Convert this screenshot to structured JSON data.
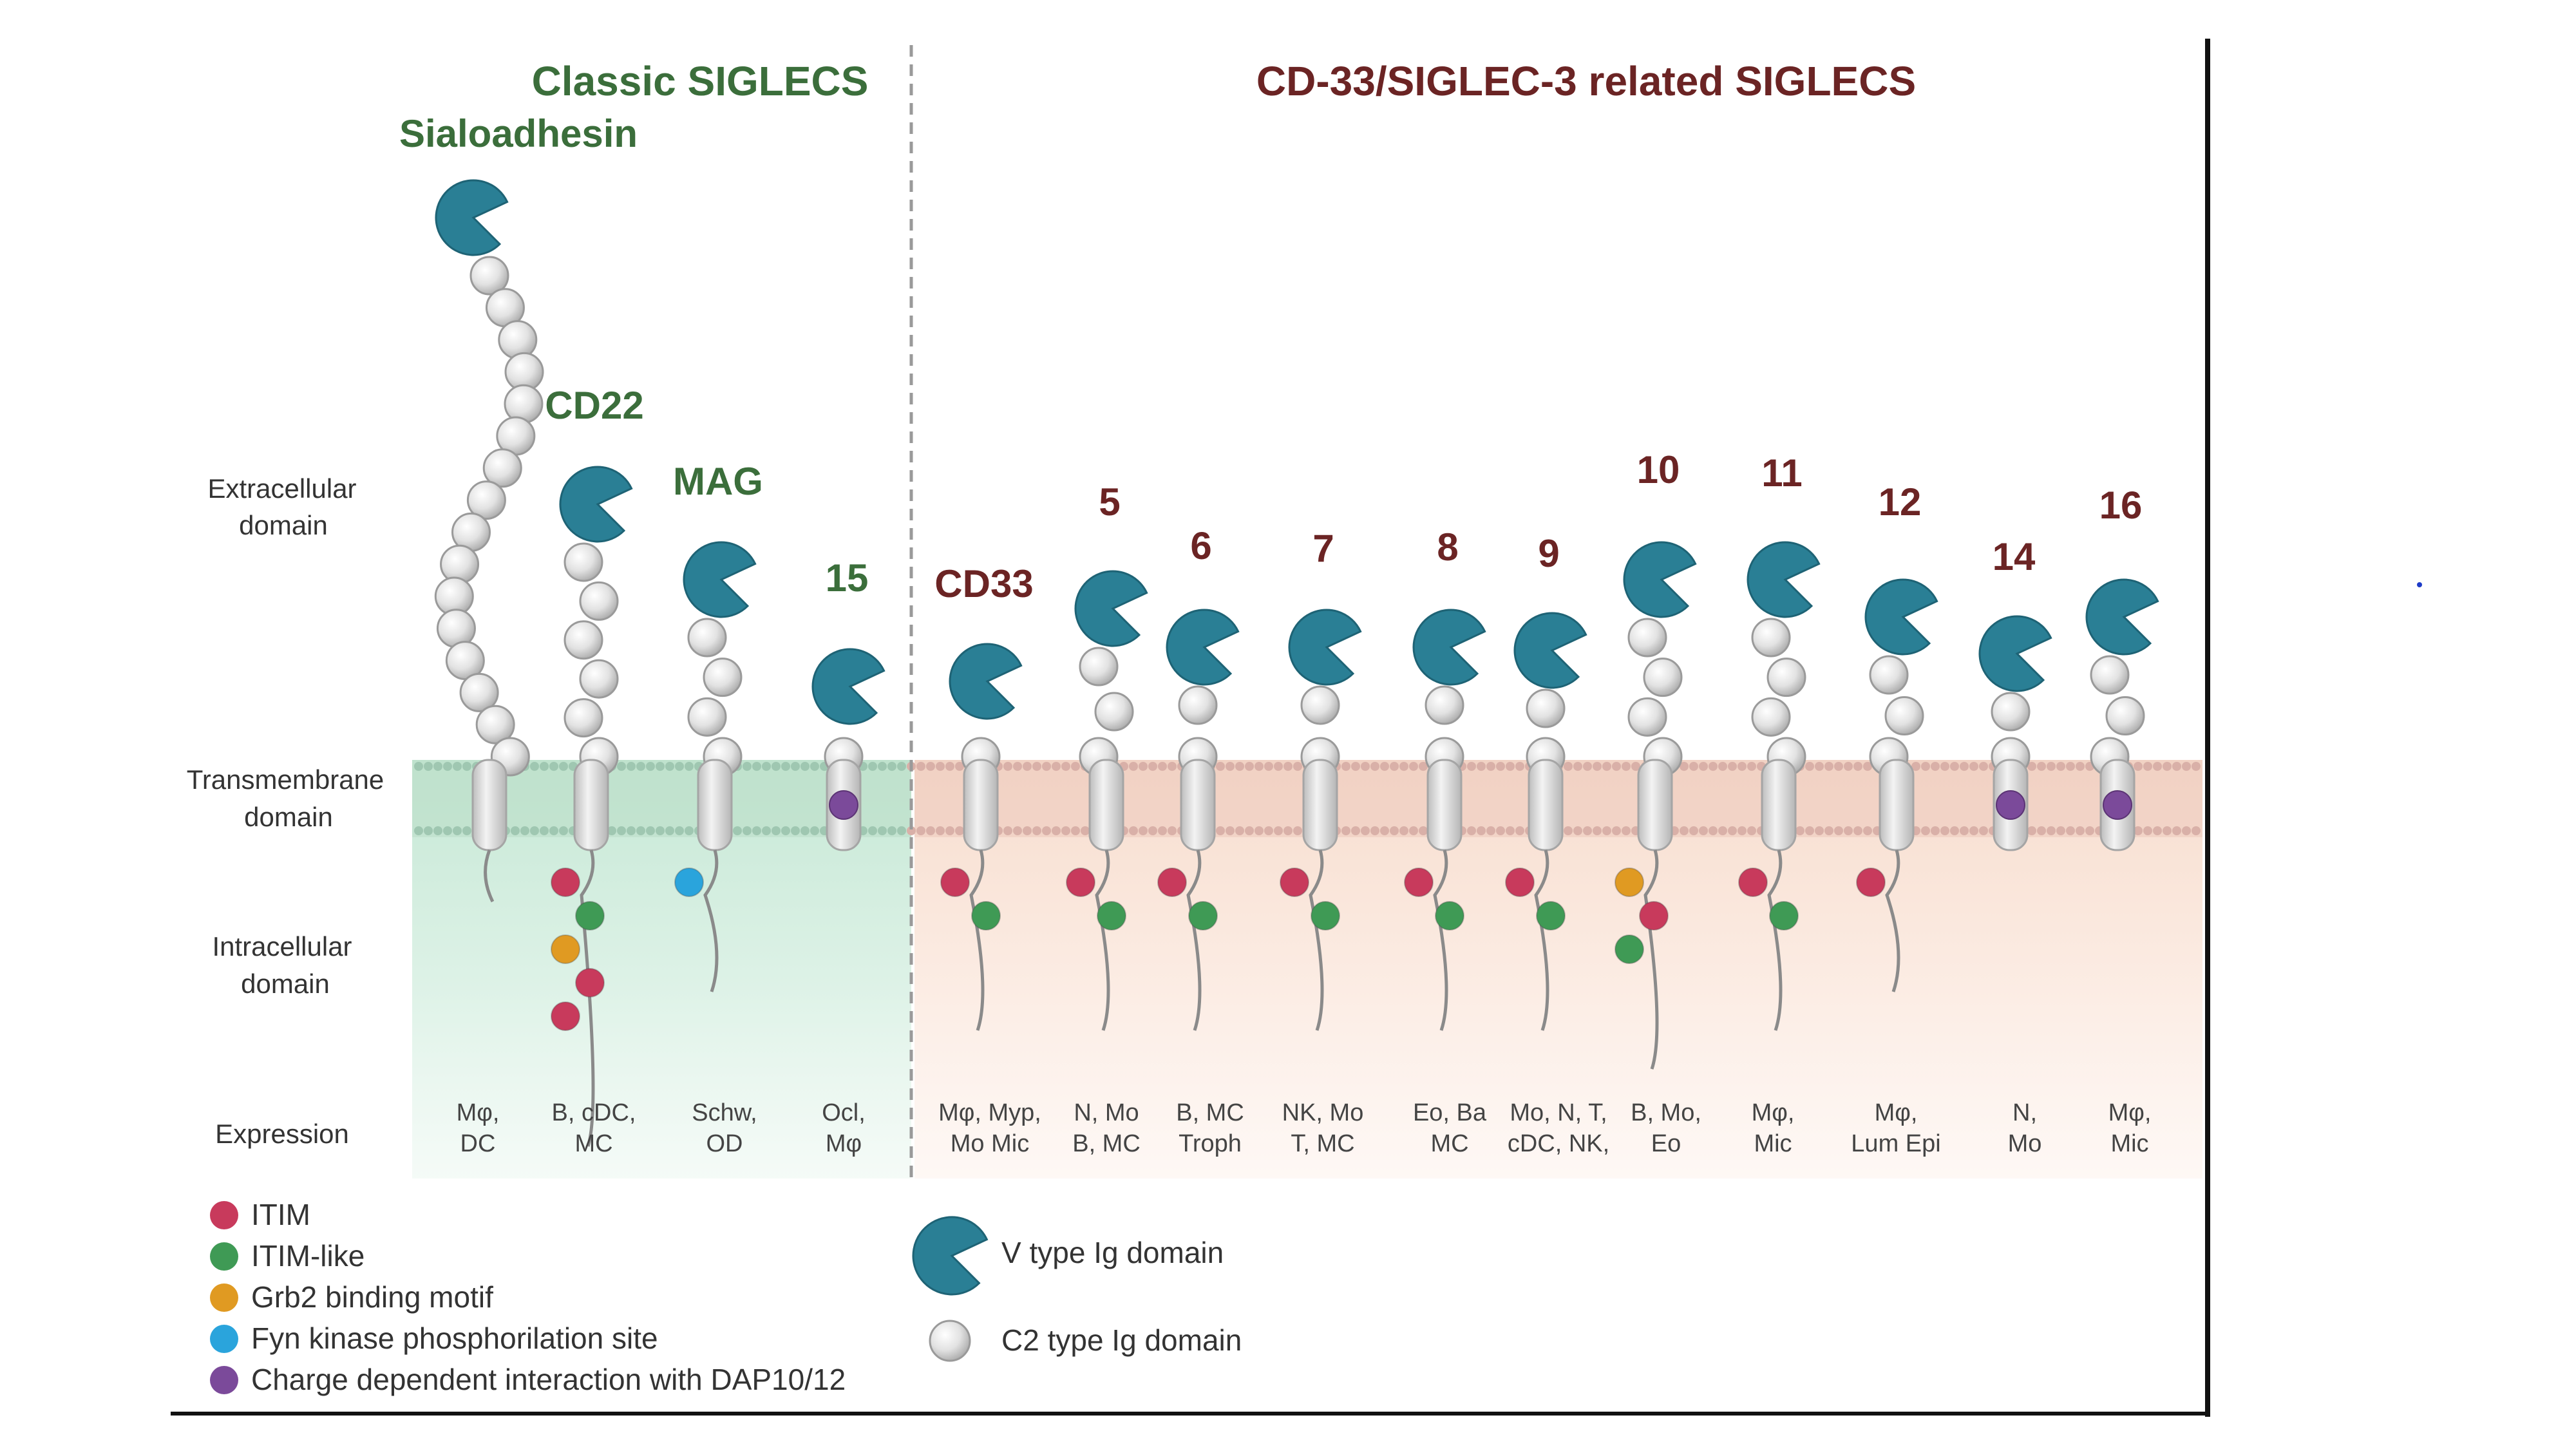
{
  "titles": {
    "classic": "Classic SIGLECS",
    "related": "CD-33/SIGLEC-3 related SIGLECS"
  },
  "row_labels": {
    "extracellular": [
      "Extracellular",
      "domain"
    ],
    "transmembrane": [
      "Transmembrane",
      "domain"
    ],
    "intracellular": [
      "Intracellular",
      "domain"
    ],
    "expression": "Expression"
  },
  "colors": {
    "classic_title": "#3b6e3b",
    "related_title": "#6b2424",
    "v_domain": "#2a7f95",
    "c2_domain": "#dedede",
    "itim": "#c83a5c",
    "itim_like": "#3f9a55",
    "grb2": "#e09a22",
    "fyn": "#2aa4dc",
    "dap": "#7b4a9a",
    "classic_bg": "#cfeadb",
    "related_bg": "#f8e2d6"
  },
  "siglecs": [
    {
      "name": "Sialoadhesin",
      "group": "classic",
      "c2": 16,
      "motifs": [],
      "tm_motif": null,
      "expression": [
        "Mφ,",
        "DC"
      ]
    },
    {
      "name": "CD22",
      "group": "classic",
      "c2": 6,
      "motifs": [
        "itim",
        "itim_like",
        "grb2",
        "itim",
        "itim"
      ],
      "tm_motif": null,
      "expression": [
        "B, cDC,",
        "MC"
      ]
    },
    {
      "name": "MAG",
      "group": "classic",
      "c2": 4,
      "motifs": [
        "fyn"
      ],
      "tm_motif": null,
      "expression": [
        "Schw,",
        "OD"
      ]
    },
    {
      "name": "15",
      "group": "classic",
      "c2": 1,
      "motifs": [],
      "tm_motif": "dap",
      "expression": [
        "Ocl,",
        "Mφ"
      ]
    },
    {
      "name": "CD33",
      "group": "related",
      "c2": 1,
      "motifs": [
        "itim",
        "itim_like"
      ],
      "tm_motif": null,
      "expression": [
        "Mφ, Myp,",
        "Mo Mic"
      ]
    },
    {
      "name": "5",
      "group": "related",
      "c2": 3,
      "motifs": [
        "itim",
        "itim_like"
      ],
      "tm_motif": null,
      "expression": [
        "N, Mo",
        "B, MC"
      ]
    },
    {
      "name": "6",
      "group": "related",
      "c2": 2,
      "motifs": [
        "itim",
        "itim_like"
      ],
      "tm_motif": null,
      "expression": [
        "B, MC",
        "Troph"
      ]
    },
    {
      "name": "7",
      "group": "related",
      "c2": 2,
      "motifs": [
        "itim",
        "itim_like"
      ],
      "tm_motif": null,
      "expression": [
        "NK, Mo",
        "T, MC"
      ]
    },
    {
      "name": "8",
      "group": "related",
      "c2": 2,
      "motifs": [
        "itim",
        "itim_like"
      ],
      "tm_motif": null,
      "expression": [
        "Eo, Ba",
        "MC"
      ]
    },
    {
      "name": "9",
      "group": "related",
      "c2": 2,
      "motifs": [
        "itim",
        "itim_like"
      ],
      "tm_motif": null,
      "expression": [
        "Mo, N, T,",
        "cDC, NK,"
      ]
    },
    {
      "name": "10",
      "group": "related",
      "c2": 4,
      "motifs": [
        "grb2",
        "itim",
        "itim_like"
      ],
      "tm_motif": null,
      "expression": [
        "B, Mo,",
        "Eo"
      ]
    },
    {
      "name": "11",
      "group": "related",
      "c2": 4,
      "motifs": [
        "itim",
        "itim_like"
      ],
      "tm_motif": null,
      "expression": [
        "Mφ,",
        "Mic"
      ]
    },
    {
      "name": "12",
      "group": "related",
      "c2": 3,
      "motifs": [
        "itim"
      ],
      "tm_motif": null,
      "expression": [
        "Mφ,",
        "Lum Epi"
      ]
    },
    {
      "name": "14",
      "group": "related",
      "c2": 2,
      "motifs": [],
      "tm_motif": "dap",
      "expression": [
        "N,",
        "Mo"
      ]
    },
    {
      "name": "16",
      "group": "related",
      "c2": 3,
      "motifs": [],
      "tm_motif": "dap",
      "expression": [
        "Mφ,",
        "Mic"
      ]
    }
  ],
  "legend": {
    "motifs": [
      {
        "key": "itim",
        "label": "ITIM"
      },
      {
        "key": "itim_like",
        "label": "ITIM-like"
      },
      {
        "key": "grb2",
        "label": "Grb2 binding motif"
      },
      {
        "key": "fyn",
        "label": "Fyn kinase phosphorilation site"
      },
      {
        "key": "dap",
        "label": "Charge dependent interaction with DAP10/12"
      }
    ],
    "domains": [
      {
        "key": "v",
        "label": "V type Ig domain"
      },
      {
        "key": "c2",
        "label": "C2 type Ig domain"
      }
    ]
  }
}
